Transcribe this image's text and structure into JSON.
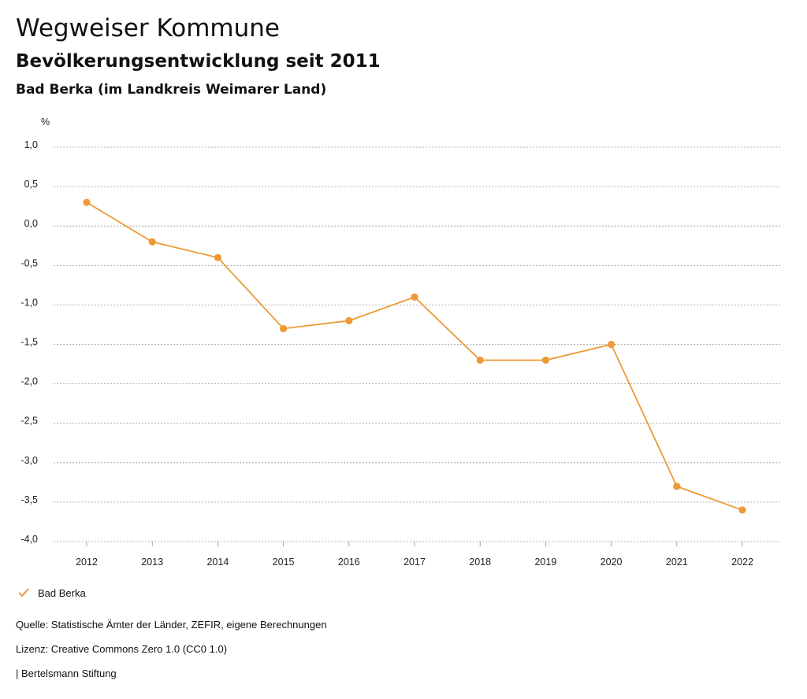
{
  "header": {
    "title": "Wegweiser Kommune",
    "subtitle": "Bevölkerungsentwicklung seit 2011",
    "region": "Bad Berka (im Landkreis Weimarer Land)"
  },
  "chart_data": {
    "type": "line",
    "unit_label": "%",
    "x": [
      "2012",
      "2013",
      "2014",
      "2015",
      "2016",
      "2017",
      "2018",
      "2019",
      "2020",
      "2021",
      "2022"
    ],
    "series": [
      {
        "name": "Bad Berka",
        "color": "#ec9a37",
        "values": [
          0.3,
          -0.2,
          -0.4,
          -1.3,
          -1.2,
          -0.9,
          -1.7,
          -1.7,
          -1.5,
          -3.3,
          -3.6
        ]
      }
    ],
    "yticks": [
      1.0,
      0.5,
      0.0,
      -0.5,
      -1.0,
      -1.5,
      -2.0,
      -2.5,
      -3.0,
      -3.5,
      -4.0
    ],
    "ytick_labels": [
      "1,0",
      "0,5",
      "0,0",
      "-0,5",
      "-1,0",
      "-1,5",
      "-2,0",
      "-2,5",
      "-3,0",
      "-3,5",
      "-4,0"
    ],
    "ylim": [
      -4.0,
      1.0
    ],
    "grid": true,
    "legend_position": "bottom-left"
  },
  "legend": {
    "label": "Bad Berka"
  },
  "footer": {
    "source": "Quelle: Statistische Ämter der Länder, ZEFIR, eigene Berechnungen",
    "license": "Lizenz: Creative Commons Zero 1.0 (CC0 1.0)",
    "publisher": "| Bertelsmann Stiftung"
  }
}
